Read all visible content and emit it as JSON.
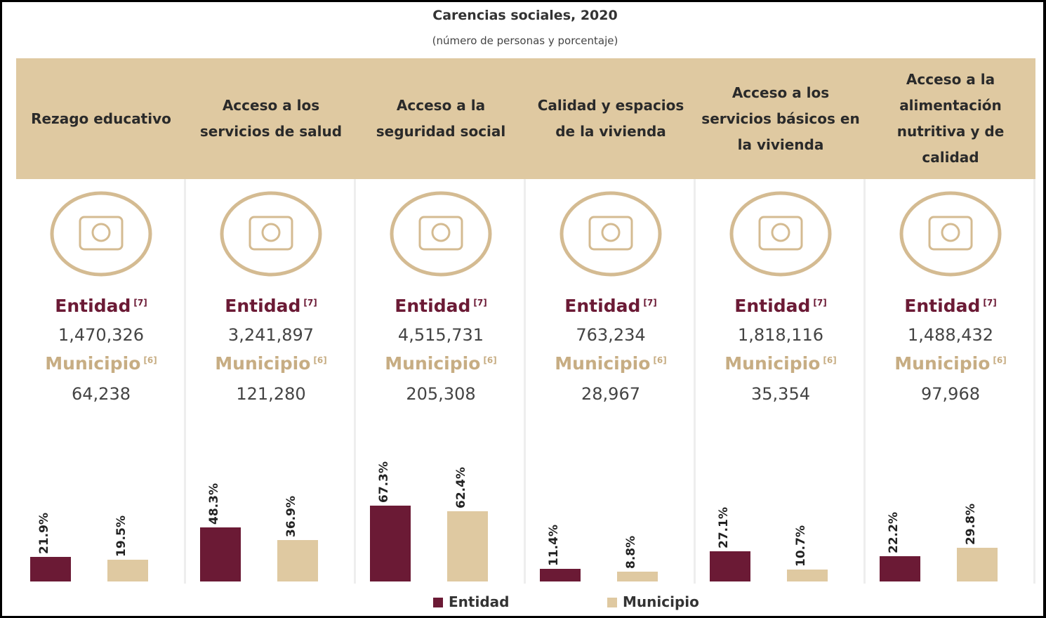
{
  "chart_data": {
    "type": "bar",
    "title": "Carencias sociales, 2020",
    "subtitle": "(número de personas y porcentaje)",
    "categories": [
      "Rezago educativo",
      "Acceso a los servicios de salud",
      "Acceso a la seguridad social",
      "Calidad y espacios de la vivienda",
      "Acceso a los servicios básicos en la vivienda",
      "Acceso a la alimentación nutritiva y de calidad"
    ],
    "series": [
      {
        "name": "Entidad",
        "note": "[7]",
        "color": "#6b1a35",
        "values": [
          21.9,
          48.3,
          67.3,
          11.4,
          27.1,
          22.2
        ],
        "value_labels": [
          "21.9%",
          "48.3%",
          "67.3%",
          "11.4%",
          "27.1%",
          "22.2%"
        ],
        "counts": [
          "1,470,326",
          "3,241,897",
          "4,515,731",
          "763,234",
          "1,818,116",
          "1,488,432"
        ]
      },
      {
        "name": "Municipio",
        "note": "[6]",
        "color": "#dfc9a1",
        "values": [
          19.5,
          36.9,
          62.4,
          8.8,
          10.7,
          29.8
        ],
        "value_labels": [
          "19.5%",
          "36.9%",
          "62.4%",
          "8.8%",
          "10.7%",
          "29.8%"
        ],
        "counts": [
          "64,238",
          "121,280",
          "205,308",
          "28,967",
          "35,354",
          "97,968"
        ]
      }
    ]
  }
}
